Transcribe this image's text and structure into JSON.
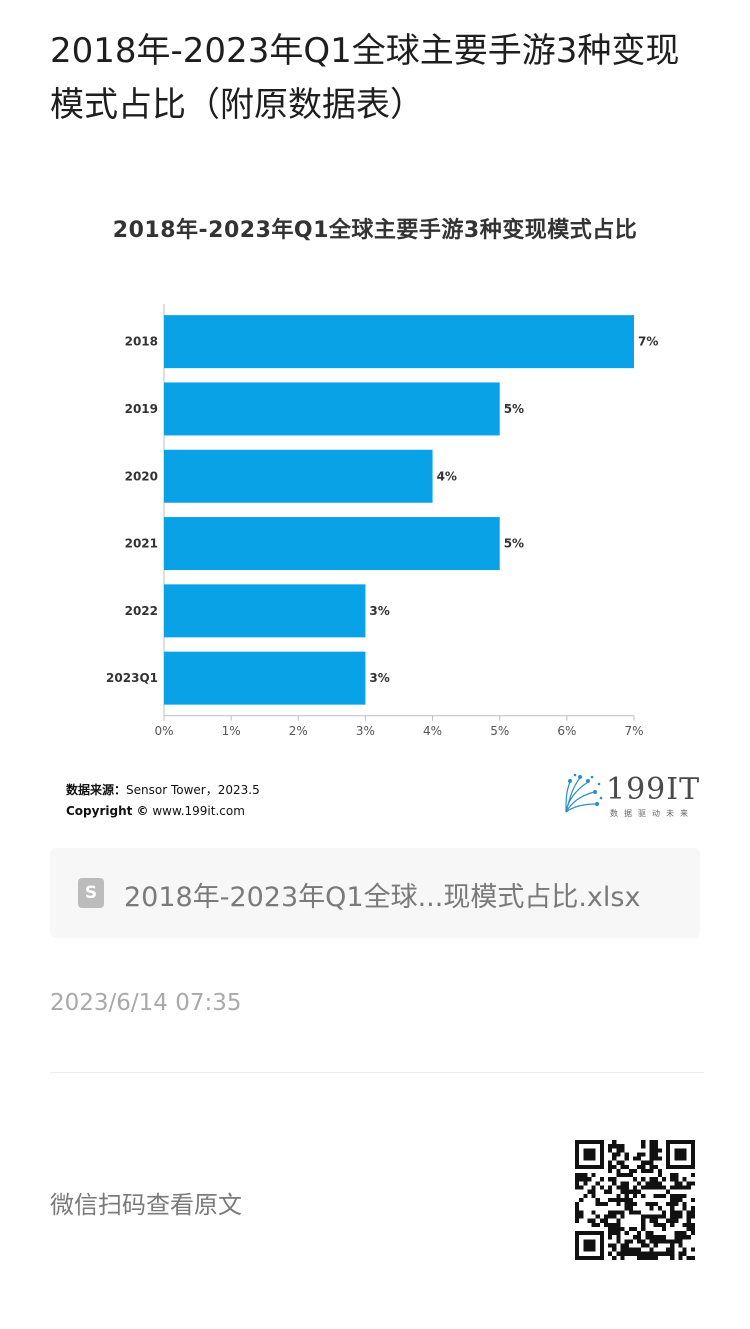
{
  "article": {
    "title": "2018年-2023年Q1全球主要手游3种变现模式占比（附原数据表）",
    "timestamp": "2023/6/14 07:35",
    "wechat_hint": "微信扫码查看原文"
  },
  "attachment": {
    "icon": "spreadsheet-icon",
    "icon_glyph": "S",
    "file_name": "2018年-2023年Q1全球...现模式占比.xlsx"
  },
  "image": {
    "source_label": "数据来源：",
    "source_value": "Sensor Tower，2023.5",
    "copyright_label": "Copyright ©",
    "copyright_value": " www.199it.com",
    "logo_text": "199IT",
    "logo_slogan": "数据驱动未来"
  },
  "colors": {
    "bar": "#0aa2e6",
    "axis": "#bfbfbf",
    "label": "#333333"
  },
  "chart_data": {
    "type": "bar",
    "orientation": "horizontal",
    "title": "2018年-2023年Q1全球主要手游3种变现模式占比",
    "categories": [
      "2018",
      "2019",
      "2020",
      "2021",
      "2022",
      "2023Q1"
    ],
    "values": [
      7,
      5,
      4,
      5,
      3,
      3
    ],
    "data_labels": [
      "7%",
      "5%",
      "4%",
      "5%",
      "3%",
      "3%"
    ],
    "xlim": [
      0,
      7
    ],
    "xticks": [
      "0%",
      "1%",
      "2%",
      "3%",
      "4%",
      "5%",
      "6%",
      "7%"
    ],
    "xlabel": "",
    "ylabel": "",
    "grid": false,
    "legend": "none"
  }
}
